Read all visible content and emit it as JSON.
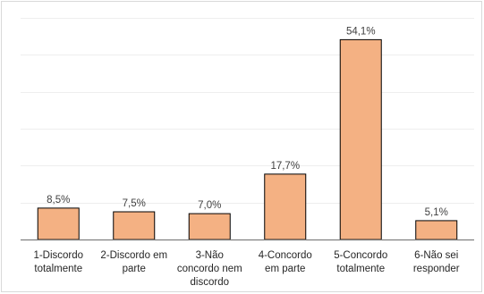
{
  "chart_data": {
    "type": "bar",
    "categories": [
      [
        "1-Discordo",
        "totalmente"
      ],
      [
        "2-Discordo em",
        "parte"
      ],
      [
        "3-Não",
        "concordo nem",
        "discordo"
      ],
      [
        "4-Concordo",
        "em parte"
      ],
      [
        "5-Concordo",
        "totalmente"
      ],
      [
        "6-Não sei",
        "responder"
      ]
    ],
    "values": [
      8.5,
      7.5,
      7.0,
      17.7,
      54.1,
      5.1
    ],
    "data_labels": [
      "8,5%",
      "7,5%",
      "7,0%",
      "17,7%",
      "54,1%",
      "5,1%"
    ],
    "ylim": [
      0,
      60
    ],
    "grid": true,
    "legend": "none",
    "colors": {
      "bar_fill": "#F4B183",
      "bar_stroke": "#000000"
    }
  }
}
